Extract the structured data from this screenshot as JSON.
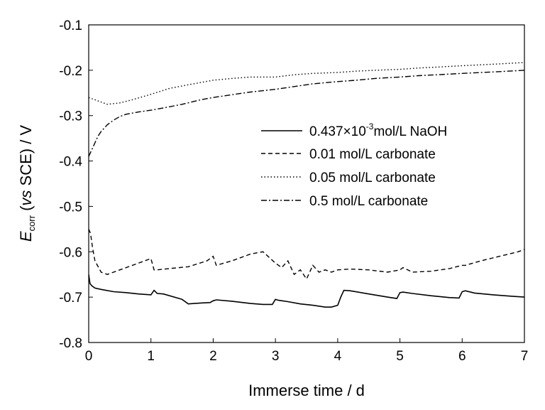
{
  "chart_data": {
    "type": "line",
    "xlabel": "Immerse time / d",
    "ylabel": {
      "E": "E",
      "corr": "corr",
      "open": " (",
      "vs": "vs",
      "rest": " SCE) / V"
    },
    "xlim": [
      0,
      7
    ],
    "ylim": [
      -0.8,
      -0.1
    ],
    "xticks": [
      0,
      1,
      2,
      3,
      4,
      5,
      6,
      7
    ],
    "yticks": [
      -0.8,
      -0.7,
      -0.6,
      -0.5,
      -0.4,
      -0.3,
      -0.2,
      -0.1
    ],
    "xtick_labels": [
      "0",
      "1",
      "2",
      "3",
      "4",
      "5",
      "6",
      "7"
    ],
    "ytick_labels": [
      "-0.8",
      "-0.7",
      "-0.6",
      "-0.5",
      "-0.4",
      "-0.3",
      "-0.2",
      "-0.1"
    ],
    "grid": false,
    "legend_position": "right-middle",
    "series": [
      {
        "name": "0.437×10-3mol/L NaOH",
        "legend": {
          "pre": "0.437×10",
          "sup": "-3",
          "post": "mol/L NaOH"
        },
        "style": "solid",
        "x": [
          0,
          0.02,
          0.05,
          0.1,
          0.2,
          0.4,
          0.6,
          0.8,
          1.0,
          1.05,
          1.1,
          1.2,
          1.5,
          1.6,
          1.8,
          1.95,
          2.0,
          2.05,
          2.3,
          2.6,
          2.8,
          2.95,
          3.0,
          3.05,
          3.2,
          3.4,
          3.6,
          3.8,
          3.9,
          4.0,
          4.05,
          4.1,
          4.2,
          4.5,
          4.8,
          4.95,
          5.0,
          5.05,
          5.2,
          5.5,
          5.8,
          5.95,
          6.0,
          6.05,
          6.2,
          6.5,
          6.8,
          7.0
        ],
        "y": [
          -0.65,
          -0.67,
          -0.675,
          -0.68,
          -0.683,
          -0.688,
          -0.69,
          -0.693,
          -0.695,
          -0.685,
          -0.692,
          -0.693,
          -0.705,
          -0.715,
          -0.713,
          -0.712,
          -0.708,
          -0.706,
          -0.709,
          -0.714,
          -0.716,
          -0.716,
          -0.705,
          -0.707,
          -0.71,
          -0.715,
          -0.718,
          -0.722,
          -0.722,
          -0.718,
          -0.7,
          -0.685,
          -0.686,
          -0.693,
          -0.7,
          -0.703,
          -0.69,
          -0.689,
          -0.692,
          -0.697,
          -0.701,
          -0.702,
          -0.688,
          -0.686,
          -0.691,
          -0.695,
          -0.698,
          -0.7
        ]
      },
      {
        "name": "0.01 mol/L carbonate",
        "style": "dashed",
        "x": [
          0,
          0.03,
          0.06,
          0.1,
          0.2,
          0.3,
          0.5,
          0.8,
          1.0,
          1.05,
          1.1,
          1.3,
          1.6,
          1.9,
          2.0,
          2.05,
          2.3,
          2.6,
          2.8,
          3.0,
          3.1,
          3.2,
          3.3,
          3.4,
          3.5,
          3.6,
          3.7,
          3.8,
          3.9,
          4.0,
          4.2,
          4.5,
          4.8,
          5.0,
          5.05,
          5.2,
          5.5,
          5.8,
          6.0,
          6.05,
          6.3,
          6.6,
          6.9,
          7.0
        ],
        "y": [
          -0.55,
          -0.56,
          -0.59,
          -0.62,
          -0.645,
          -0.65,
          -0.64,
          -0.625,
          -0.615,
          -0.64,
          -0.64,
          -0.637,
          -0.633,
          -0.62,
          -0.61,
          -0.63,
          -0.62,
          -0.605,
          -0.6,
          -0.625,
          -0.635,
          -0.62,
          -0.65,
          -0.64,
          -0.66,
          -0.63,
          -0.645,
          -0.64,
          -0.645,
          -0.64,
          -0.638,
          -0.64,
          -0.645,
          -0.64,
          -0.635,
          -0.645,
          -0.643,
          -0.637,
          -0.63,
          -0.63,
          -0.62,
          -0.61,
          -0.6,
          -0.595
        ]
      },
      {
        "name": "0.05 mol/L carbonate",
        "style": "dotted",
        "x": [
          0,
          0.1,
          0.2,
          0.3,
          0.5,
          0.7,
          1.0,
          1.3,
          1.6,
          2.0,
          2.3,
          2.6,
          3.0,
          3.3,
          3.6,
          4.0,
          4.3,
          4.6,
          5.0,
          5.3,
          5.6,
          6.0,
          6.3,
          6.6,
          7.0
        ],
        "y": [
          -0.26,
          -0.265,
          -0.27,
          -0.275,
          -0.272,
          -0.265,
          -0.253,
          -0.24,
          -0.232,
          -0.222,
          -0.218,
          -0.215,
          -0.215,
          -0.21,
          -0.207,
          -0.205,
          -0.202,
          -0.2,
          -0.198,
          -0.195,
          -0.193,
          -0.19,
          -0.188,
          -0.186,
          -0.183
        ]
      },
      {
        "name": "0.5 mol/L carbonate",
        "style": "dashdot",
        "x": [
          0,
          0.05,
          0.1,
          0.15,
          0.2,
          0.3,
          0.4,
          0.5,
          0.6,
          0.8,
          1.0,
          1.2,
          1.5,
          1.8,
          2.0,
          2.3,
          2.6,
          3.0,
          3.3,
          3.6,
          4.0,
          4.3,
          4.6,
          5.0,
          5.3,
          5.6,
          6.0,
          6.3,
          6.6,
          7.0
        ],
        "y": [
          -0.39,
          -0.375,
          -0.36,
          -0.345,
          -0.335,
          -0.32,
          -0.31,
          -0.302,
          -0.297,
          -0.292,
          -0.288,
          -0.283,
          -0.275,
          -0.265,
          -0.26,
          -0.254,
          -0.248,
          -0.242,
          -0.236,
          -0.23,
          -0.225,
          -0.222,
          -0.218,
          -0.215,
          -0.212,
          -0.21,
          -0.207,
          -0.205,
          -0.203,
          -0.2
        ]
      }
    ]
  }
}
